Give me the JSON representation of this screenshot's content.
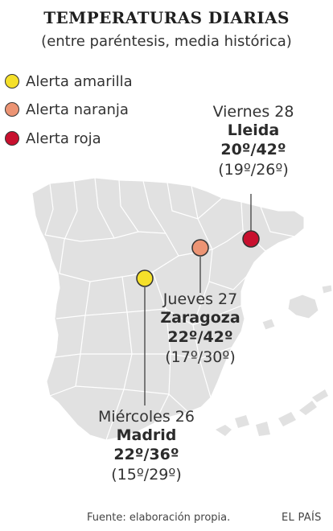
{
  "header": {
    "title": "TEMPERATURAS DIARIAS",
    "subtitle": "(entre paréntesis, media histórica)"
  },
  "legend": [
    {
      "label": "Alerta amarilla",
      "color": "#f5e02a"
    },
    {
      "label": "Alerta naranja",
      "color": "#ec9474"
    },
    {
      "label": "Alerta roja",
      "color": "#c8102e"
    }
  ],
  "cities": [
    {
      "day": "Viernes 28",
      "name": "Lleida",
      "temps": "20º/42º",
      "historical": "(19º/26º)",
      "alert": "roja"
    },
    {
      "day": "Jueves 27",
      "name": "Zaragoza",
      "temps": "22º/42º",
      "historical": "(17º/30º)",
      "alert": "naranja"
    },
    {
      "day": "Miércoles 26",
      "name": "Madrid",
      "temps": "22º/36º",
      "historical": "(15º/29º)",
      "alert": "amarilla"
    }
  ],
  "map": {
    "land_color": "#e1e1e1",
    "border_color": "#ffffff"
  },
  "footer": {
    "source": "Fuente: elaboración propia.",
    "brand": "EL PAÍS"
  }
}
